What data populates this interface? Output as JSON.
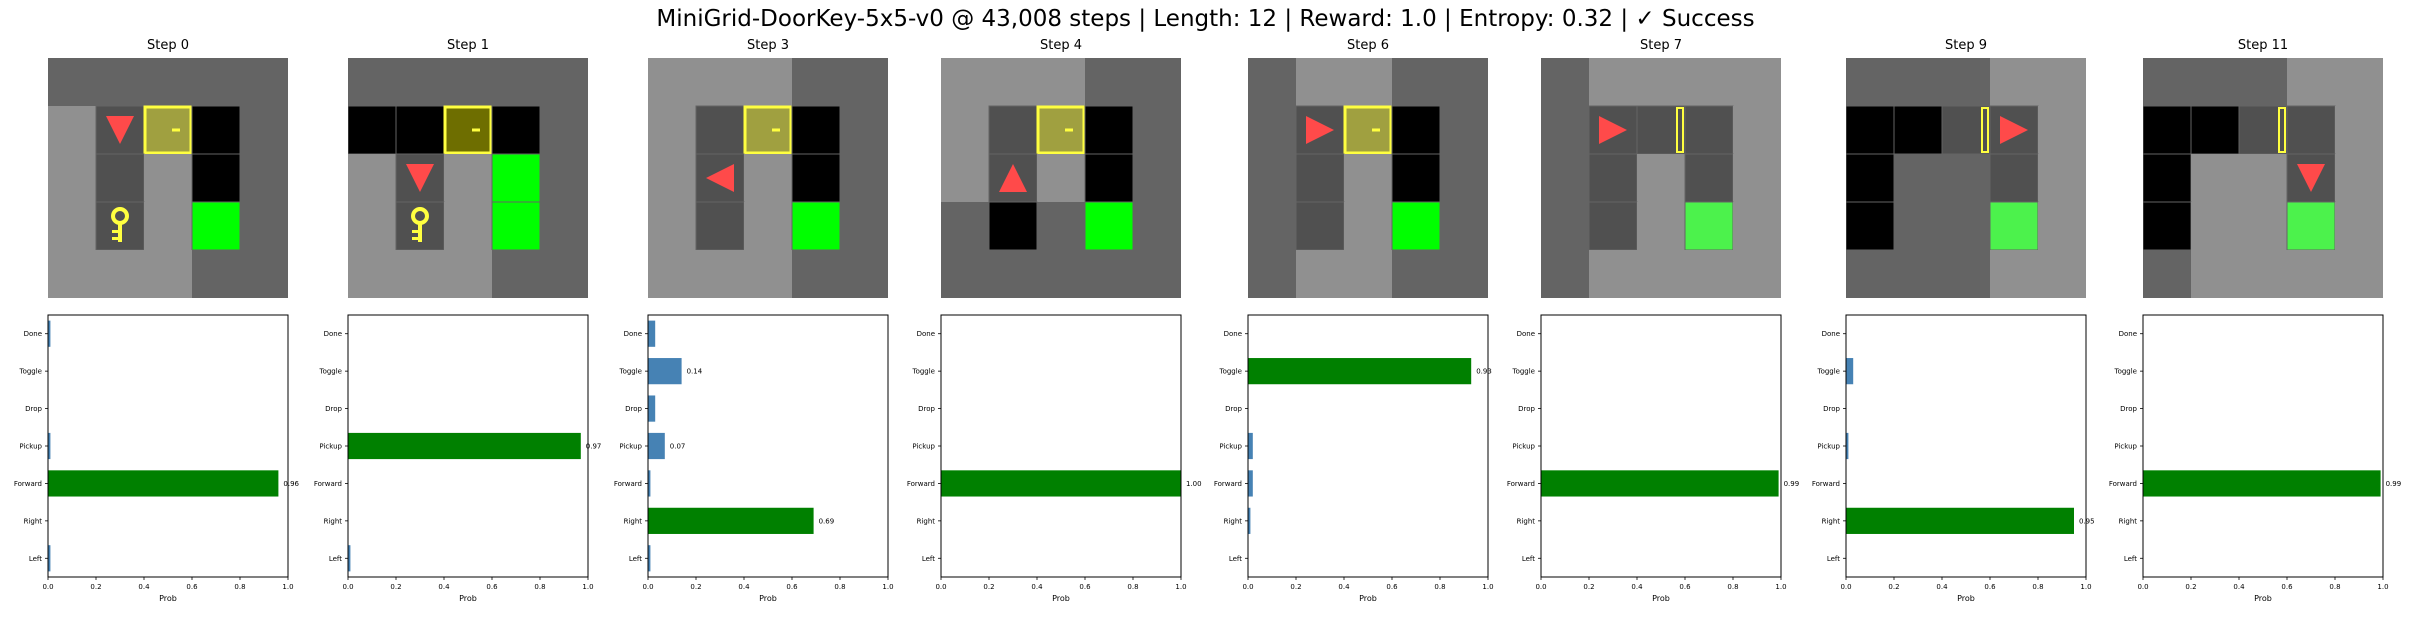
{
  "figure_title": "MiniGrid-DoorKey-5x5-v0 @ 43,008 steps | Length: 12 | Reward: 1.0 | Entropy: 0.32 | ✓ Success",
  "colors": {
    "wall": "#646464",
    "floor": "#909090",
    "cell_dark": "#505050",
    "black": "#000000",
    "goal": "#00ff00",
    "goal_seen": "#4cf24c",
    "agent": "#ff4a4a",
    "door": "#ffff40",
    "key": "#ffff40",
    "bar_chosen": "#008000",
    "bar_other": "#4682b4"
  },
  "icons": [
    "agent-triangle-icon",
    "locked-door-icon",
    "open-door-icon",
    "key-icon",
    "goal-icon"
  ],
  "panels": [
    {
      "step_label": "Step 0",
      "grid": [
        [
          "W",
          "W",
          "W",
          "W",
          "W"
        ],
        [
          "F",
          "d",
          "D",
          "b",
          "W"
        ],
        [
          "F",
          "d",
          "F",
          "b",
          "W"
        ],
        [
          "F",
          "k",
          "F",
          "g",
          "W"
        ],
        [
          "F",
          "F",
          "F",
          "W",
          "W"
        ]
      ],
      "agent": {
        "row": 1,
        "col": 1,
        "dir": "down"
      },
      "door_state": "locked"
    },
    {
      "step_label": "Step 1",
      "grid": [
        [
          "W",
          "W",
          "W",
          "W",
          "W"
        ],
        [
          "b",
          "b",
          "D",
          "b",
          "W"
        ],
        [
          "F",
          "d",
          "F",
          "g",
          "W"
        ],
        [
          "F",
          "k",
          "F",
          "g",
          "W"
        ],
        [
          "F",
          "F",
          "F",
          "W",
          "W"
        ]
      ],
      "agent": {
        "row": 2,
        "col": 1,
        "dir": "down"
      },
      "door_state": "locked",
      "door_dark": true
    },
    {
      "step_label": "Step 3",
      "grid": [
        [
          "F",
          "F",
          "F",
          "W",
          "W"
        ],
        [
          "F",
          "d",
          "D",
          "b",
          "W"
        ],
        [
          "F",
          "d",
          "F",
          "b",
          "W"
        ],
        [
          "F",
          "d",
          "F",
          "g",
          "W"
        ],
        [
          "F",
          "F",
          "F",
          "W",
          "W"
        ]
      ],
      "agent": {
        "row": 2,
        "col": 1,
        "dir": "left"
      },
      "door_state": "locked"
    },
    {
      "step_label": "Step 4",
      "grid": [
        [
          "F",
          "F",
          "F",
          "W",
          "W"
        ],
        [
          "F",
          "d",
          "D",
          "b",
          "W"
        ],
        [
          "F",
          "d",
          "F",
          "b",
          "W"
        ],
        [
          "W",
          "b",
          "W",
          "g",
          "W"
        ],
        [
          "W",
          "W",
          "W",
          "W",
          "W"
        ]
      ],
      "agent": {
        "row": 2,
        "col": 1,
        "dir": "up"
      },
      "door_state": "locked"
    },
    {
      "step_label": "Step 6",
      "grid": [
        [
          "W",
          "F",
          "F",
          "W",
          "W"
        ],
        [
          "W",
          "d",
          "D",
          "b",
          "W"
        ],
        [
          "W",
          "d",
          "F",
          "b",
          "W"
        ],
        [
          "W",
          "d",
          "F",
          "g",
          "W"
        ],
        [
          "W",
          "F",
          "F",
          "W",
          "W"
        ]
      ],
      "agent": {
        "row": 1,
        "col": 1,
        "dir": "right"
      },
      "door_state": "locked"
    },
    {
      "step_label": "Step 7",
      "grid": [
        [
          "W",
          "F",
          "F",
          "F",
          "F"
        ],
        [
          "W",
          "d",
          "o",
          "d",
          "F"
        ],
        [
          "W",
          "d",
          "F",
          "d",
          "F"
        ],
        [
          "W",
          "d",
          "F",
          "G",
          "F"
        ],
        [
          "W",
          "F",
          "F",
          "F",
          "F"
        ]
      ],
      "agent": {
        "row": 1,
        "col": 1,
        "dir": "right"
      },
      "door_state": "open"
    },
    {
      "step_label": "Step 9",
      "grid": [
        [
          "W",
          "W",
          "W",
          "F",
          "F"
        ],
        [
          "b",
          "b",
          "o",
          "d",
          "F"
        ],
        [
          "b",
          "W",
          "W",
          "d",
          "F"
        ],
        [
          "b",
          "W",
          "W",
          "G",
          "F"
        ],
        [
          "W",
          "W",
          "W",
          "F",
          "F"
        ]
      ],
      "agent": {
        "row": 1,
        "col": 3,
        "dir": "right"
      },
      "door_state": "open"
    },
    {
      "step_label": "Step 11",
      "grid": [
        [
          "W",
          "W",
          "W",
          "F",
          "F"
        ],
        [
          "b",
          "b",
          "o",
          "d",
          "F"
        ],
        [
          "b",
          "F",
          "F",
          "d",
          "F"
        ],
        [
          "b",
          "F",
          "F",
          "G",
          "F"
        ],
        [
          "W",
          "F",
          "F",
          "F",
          "F"
        ]
      ],
      "agent": {
        "row": 2,
        "col": 3,
        "dir": "down"
      },
      "door_state": "open"
    }
  ],
  "chart_data": {
    "type": "bar",
    "orientation": "horizontal",
    "categories": [
      "Left",
      "Right",
      "Forward",
      "Pickup",
      "Drop",
      "Toggle",
      "Done"
    ],
    "xlabel": "Prob",
    "xlim": [
      0,
      1
    ],
    "xticks": [
      "0.0",
      "0.2",
      "0.4",
      "0.6",
      "0.8",
      "1.0"
    ],
    "charts": [
      {
        "step": "Step 0",
        "values": [
          0.01,
          0.0,
          0.96,
          0.01,
          0.0,
          0.0,
          0.01
        ],
        "chosen": "Forward",
        "value_label": "0.96"
      },
      {
        "step": "Step 1",
        "values": [
          0.01,
          0.0,
          0.0,
          0.97,
          0.0,
          0.0,
          0.0
        ],
        "chosen": "Pickup",
        "value_label": "0.97"
      },
      {
        "step": "Step 3",
        "values": [
          0.01,
          0.69,
          0.01,
          0.07,
          0.03,
          0.14,
          0.03
        ],
        "chosen": "Right",
        "value_label": "0.69",
        "other_labels": {
          "Pickup": "0.07",
          "Toggle": "0.14"
        }
      },
      {
        "step": "Step 4",
        "values": [
          0.0,
          0.0,
          1.0,
          0.0,
          0.0,
          0.0,
          0.0
        ],
        "chosen": "Forward",
        "value_label": "1.00"
      },
      {
        "step": "Step 6",
        "values": [
          0.0,
          0.01,
          0.02,
          0.02,
          0.0,
          0.93,
          0.0
        ],
        "chosen": "Toggle",
        "value_label": "0.93"
      },
      {
        "step": "Step 7",
        "values": [
          0.0,
          0.0,
          0.99,
          0.0,
          0.0,
          0.0,
          0.0
        ],
        "chosen": "Forward",
        "value_label": "0.99"
      },
      {
        "step": "Step 9",
        "values": [
          0.0,
          0.95,
          0.0,
          0.01,
          0.0,
          0.03,
          0.0
        ],
        "chosen": "Right",
        "value_label": "0.95"
      },
      {
        "step": "Step 11",
        "values": [
          0.0,
          0.0,
          0.99,
          0.0,
          0.0,
          0.0,
          0.0
        ],
        "chosen": "Forward",
        "value_label": "0.99"
      }
    ]
  }
}
